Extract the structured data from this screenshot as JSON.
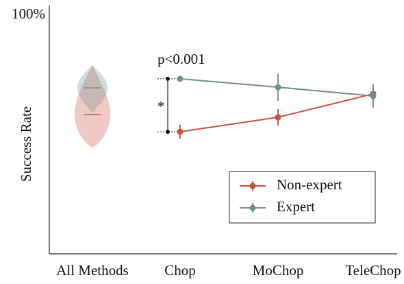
{
  "chart_data": {
    "type": "line",
    "y_label": "Success Rate",
    "annotations": [
      "p<0.001",
      "*"
    ],
    "categories": [
      "All Methods",
      "Chop",
      "MoChop",
      "TeleChop"
    ],
    "ylim": [
      0,
      100
    ],
    "yticks": [
      {
        "value": 100,
        "label": "100%"
      }
    ],
    "legend": "lower right",
    "series": [
      {
        "name": "Non-expert",
        "color": "#c9503f",
        "values": [
          null,
          51.1,
          57.2,
          67.0
        ],
        "errors": [
          null,
          3.0,
          3.5,
          3.5
        ],
        "violin": {
          "min": 44.5,
          "max": 79.0,
          "median": 58.3
        }
      },
      {
        "name": "Expert",
        "color": "#6e8e8f",
        "values": [
          null,
          73.3,
          69.8,
          66.1
        ],
        "errors": [
          null,
          1.0,
          5.7,
          5.0
        ],
        "violin": {
          "min": 58.9,
          "max": 79.0,
          "median": 69.5
        }
      }
    ]
  }
}
